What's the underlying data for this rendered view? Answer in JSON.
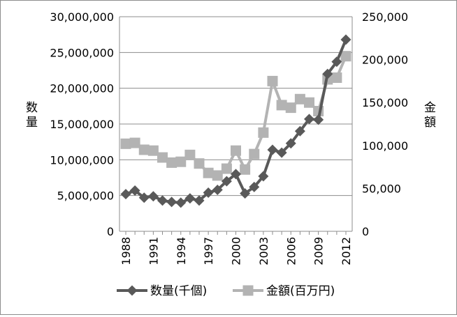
{
  "chart_data": {
    "type": "line",
    "x": [
      1988,
      1989,
      1990,
      1991,
      1992,
      1993,
      1994,
      1995,
      1996,
      1997,
      1998,
      1999,
      2000,
      2001,
      2002,
      2003,
      2004,
      2005,
      2006,
      2007,
      2008,
      2009,
      2010,
      2011,
      2012
    ],
    "x_tick_labels": [
      "1988",
      "1991",
      "1994",
      "1997",
      "2000",
      "2003",
      "2006",
      "2009",
      "2012"
    ],
    "series": [
      {
        "name": "数量(千個)",
        "axis": "left",
        "marker": "diamond",
        "color": "#595959",
        "values": [
          5200000,
          5700000,
          4700000,
          4900000,
          4300000,
          4100000,
          4000000,
          4600000,
          4300000,
          5400000,
          5800000,
          7000000,
          8000000,
          5300000,
          6200000,
          7700000,
          11400000,
          11000000,
          12300000,
          14000000,
          15700000,
          15600000,
          22000000,
          23700000,
          26800000
        ]
      },
      {
        "name": "金額(百万円)",
        "axis": "right",
        "marker": "square",
        "color": "#b3b3b3",
        "values": [
          102000,
          103000,
          95000,
          94000,
          86000,
          80000,
          81000,
          89000,
          79000,
          68000,
          65000,
          73000,
          94000,
          72000,
          90000,
          115000,
          175000,
          147000,
          144000,
          154000,
          150000,
          140000,
          177000,
          179000,
          204000
        ]
      }
    ],
    "ylabel_left": "数量",
    "ylabel_right": "金額",
    "ylim_left": [
      0,
      30000000
    ],
    "ylim_right": [
      0,
      250000
    ],
    "y_ticks_left": [
      "0",
      "5,000,000",
      "10,000,000",
      "15,000,000",
      "20,000,000",
      "25,000,000",
      "30,000,000"
    ],
    "y_ticks_right": [
      "0",
      "50,000",
      "100,000",
      "150,000",
      "200,000",
      "250,000"
    ],
    "grid": true,
    "legend_position": "bottom"
  }
}
